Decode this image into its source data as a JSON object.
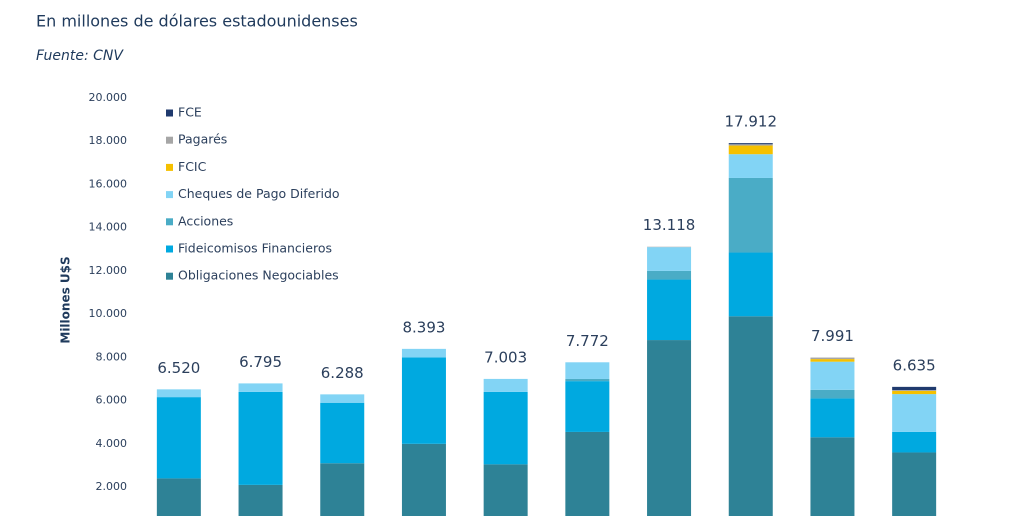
{
  "chart_data": {
    "type": "stacked_bar",
    "title": "En millones de dólares estadounidenses",
    "subtitle": "Fuente: CNV",
    "y_label": "Millones U$S",
    "categories": [
      null,
      null,
      null,
      null,
      null,
      null,
      null,
      null,
      null,
      null
    ],
    "ylim": [
      660,
      20000
    ],
    "yticks": [
      {
        "value": 2000,
        "label": "2.000"
      },
      {
        "value": 4000,
        "label": "4.000"
      },
      {
        "value": 6000,
        "label": "6.000"
      },
      {
        "value": 8000,
        "label": "8.000"
      },
      {
        "value": 10000,
        "label": "10.000"
      },
      {
        "value": 12000,
        "label": "12.000"
      },
      {
        "value": 14000,
        "label": "14.000"
      },
      {
        "value": 16000,
        "label": "16.000"
      },
      {
        "value": 18000,
        "label": "18.000"
      },
      {
        "value": 20000,
        "label": "20.000"
      }
    ],
    "grid": false,
    "legend": "top-left",
    "series": [
      {
        "name": "Obligaciones Negociables",
        "color": "#2e8296",
        "values": [
          2400,
          2100,
          3100,
          4000,
          3050,
          4550,
          8800,
          9900,
          4300,
          3600
        ]
      },
      {
        "name": "Fideicomisos Financieros",
        "color": "#00a9e0",
        "values": [
          3760,
          4300,
          2800,
          4000,
          3350,
          2350,
          2800,
          2950,
          1800,
          950
        ]
      },
      {
        "name": "Acciones",
        "color": "#4aacc6",
        "values": [
          0,
          0,
          0,
          0,
          0,
          100,
          400,
          3450,
          400,
          0
        ]
      },
      {
        "name": "Cheques de Pago Diferido",
        "color": "#82d4f5",
        "values": [
          360,
          395,
          388,
          393,
          603,
          772,
          1100,
          1100,
          1300,
          1750
        ]
      },
      {
        "name": "FCIC",
        "color": "#f5c000",
        "values": [
          0,
          0,
          0,
          0,
          0,
          0,
          0,
          400,
          120,
          150
        ]
      },
      {
        "name": "Pagarés",
        "color": "#a6a6a6",
        "values": [
          0,
          0,
          0,
          0,
          0,
          0,
          18,
          60,
          71,
          35
        ]
      },
      {
        "name": "FCE",
        "color": "#1f3a6e",
        "values": [
          0,
          0,
          0,
          0,
          0,
          0,
          0,
          52,
          0,
          150
        ]
      }
    ],
    "totals": {
      "values": [
        6520,
        6795,
        6288,
        8393,
        7003,
        7772,
        13118,
        17912,
        7991,
        6635
      ],
      "value_labels": [
        "6.520",
        "6.795",
        "6.288",
        "8.393",
        "7.003",
        "7.772",
        "13.118",
        "17.912",
        "7.991",
        "6.635"
      ]
    }
  }
}
